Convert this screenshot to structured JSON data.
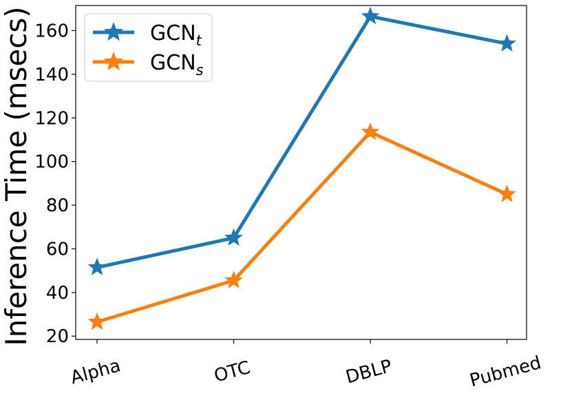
{
  "chart_data": {
    "type": "line",
    "title": "",
    "xlabel": "",
    "ylabel": "Inference Time (msecs)",
    "categories": [
      "Alpha",
      "OTC",
      "DBLP",
      "Pubmed"
    ],
    "ylim": [
      18.5,
      171.5
    ],
    "yticks": [
      20,
      40,
      60,
      80,
      100,
      120,
      140,
      160
    ],
    "grid": false,
    "legend_position": "top-left",
    "marker": "star",
    "series": [
      {
        "name": "GCN",
        "subscript": "t",
        "color": "#1f77b4",
        "values": [
          51.5,
          65,
          166.5,
          154
        ]
      },
      {
        "name": "GCN",
        "subscript": "s",
        "color": "#ff7f0e",
        "values": [
          26.5,
          45.5,
          113.5,
          85
        ]
      }
    ]
  }
}
